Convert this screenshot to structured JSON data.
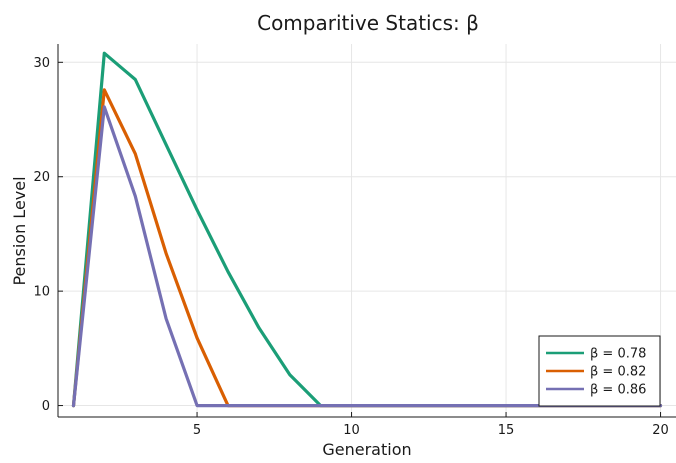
{
  "chart_data": {
    "type": "line",
    "title": "Comparitive Statics: β",
    "xlabel": "Generation",
    "ylabel": "Pension Level",
    "xlim": [
      0.5,
      20.5
    ],
    "ylim": [
      -1,
      31.6
    ],
    "xticks": [
      5,
      10,
      15,
      20
    ],
    "yticks": [
      0,
      10,
      20,
      30
    ],
    "xtick_labels": [
      "5",
      "10",
      "15",
      "20"
    ],
    "ytick_labels": [
      "0",
      "10",
      "20",
      "30"
    ],
    "grid": true,
    "legend_position": "bottom-right",
    "x": [
      1,
      2,
      3,
      4,
      5,
      6,
      7,
      8,
      9,
      10,
      11,
      12,
      13,
      14,
      15,
      16,
      17,
      18,
      19,
      20
    ],
    "series": [
      {
        "name": "β = 0.78",
        "color": "#1b9e77",
        "values": [
          0,
          30.8,
          28.5,
          22.8,
          17.1,
          11.7,
          6.8,
          2.7,
          0,
          0,
          0,
          0,
          0,
          0,
          0,
          0,
          0,
          0,
          0,
          0
        ]
      },
      {
        "name": "β = 0.82",
        "color": "#d95f02",
        "values": [
          0,
          27.6,
          22.0,
          13.3,
          5.9,
          0,
          0,
          0,
          0,
          0,
          0,
          0,
          0,
          0,
          0,
          0,
          0,
          0,
          0,
          0
        ]
      },
      {
        "name": "β = 0.86",
        "color": "#7570b3",
        "values": [
          0,
          26.1,
          18.3,
          7.6,
          0,
          0,
          0,
          0,
          0,
          0,
          0,
          0,
          0,
          0,
          0,
          0,
          0,
          0,
          0,
          0
        ]
      }
    ]
  }
}
